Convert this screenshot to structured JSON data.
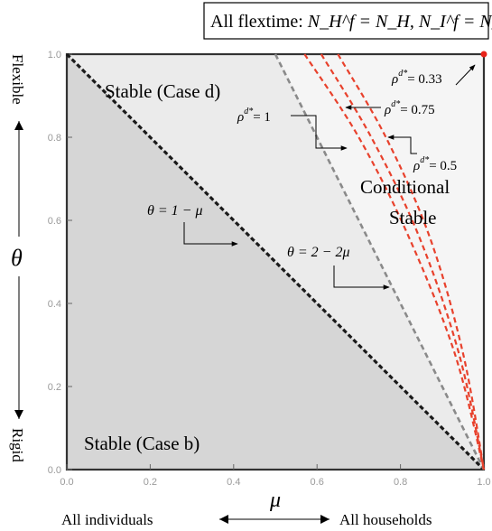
{
  "title_box": {
    "prefix": "All flextime: ",
    "formula": "N_H^f = N_H, N_I^f = N_I"
  },
  "axes": {
    "xlabel": "μ",
    "ylabel": "θ",
    "x_left_text": "All individuals",
    "x_right_text": "All households",
    "y_top_text": "Flexible",
    "y_bottom_text": "Rigid"
  },
  "regions": {
    "upper": "Stable (Case d)",
    "lower": "Stable (Case b)",
    "conditional_line1": "Conditional",
    "conditional_line2": "Stable"
  },
  "line_labels": {
    "theta1": "θ = 1 − μ",
    "theta2": "θ = 2 − 2μ",
    "rho1_sym": "ρ",
    "rho_sup": "d*",
    "rho1_val": "= 1",
    "rho075_val": "= 0.75",
    "rho05_val": "= 0.5",
    "rho033_val": "= 0.33"
  },
  "colors": {
    "dark_region": "#d6d6d6",
    "light_region": "#ebebeb",
    "red_curves": "#e8412c",
    "grey_line": "#8a8a8a",
    "black_line": "#1a1a1a"
  },
  "chart_data": {
    "type": "line",
    "xlim": [
      0,
      1
    ],
    "ylim": [
      0,
      1
    ],
    "x_ticks": [
      "0.0",
      "0.2",
      "0.4",
      "0.6",
      "0.8",
      "1.0"
    ],
    "y_ticks": [
      "0.0",
      "0.2",
      "0.4",
      "0.6",
      "0.8",
      "1.0"
    ],
    "series": [
      {
        "name": "θ = 1 − μ",
        "style": "dashed-black",
        "points": [
          [
            0,
            1
          ],
          [
            1,
            0
          ]
        ]
      },
      {
        "name": "θ = 2 − 2μ",
        "style": "dashed-grey",
        "points": [
          [
            0.5,
            1
          ],
          [
            1,
            0
          ]
        ]
      },
      {
        "name": "ρ^{d*} = 0.75",
        "style": "dashed-red",
        "points": [
          [
            0.57,
            1
          ],
          [
            0.7,
            0.8
          ],
          [
            0.82,
            0.56
          ],
          [
            0.93,
            0.28
          ],
          [
            1,
            0
          ]
        ]
      },
      {
        "name": "ρ^{d*} = 0.5",
        "style": "dashed-red",
        "points": [
          [
            0.61,
            1
          ],
          [
            0.73,
            0.8
          ],
          [
            0.845,
            0.56
          ],
          [
            0.94,
            0.28
          ],
          [
            1,
            0
          ]
        ]
      },
      {
        "name": "ρ^{d*} = 0.33",
        "style": "dashed-red",
        "points": [
          [
            0.65,
            1
          ],
          [
            0.765,
            0.8
          ],
          [
            0.87,
            0.56
          ],
          [
            0.95,
            0.28
          ],
          [
            1,
            0
          ]
        ]
      }
    ],
    "point": {
      "x": 1.0,
      "y": 1.0,
      "color": "red"
    }
  }
}
